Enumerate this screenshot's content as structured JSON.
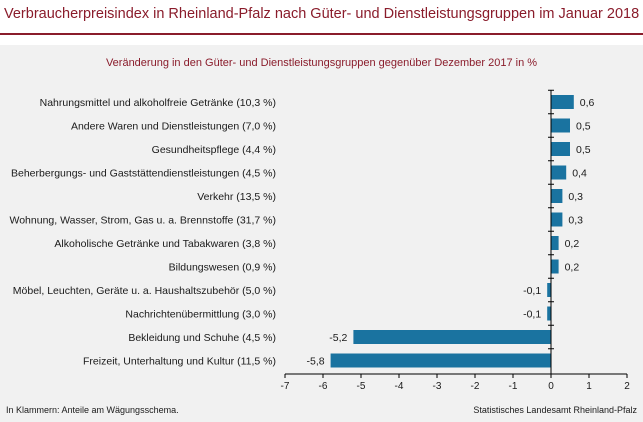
{
  "header": {
    "title": "Verbraucherpreisindex in Rheinland-Pfalz nach Güter- und Dienstleistungsgruppen im Januar 2018"
  },
  "footer": {
    "note": "In Klammern: Anteile am Wägungsschema.",
    "source": "Statistisches Landesamt Rheinland-Pfalz"
  },
  "colors": {
    "accent": "#8a1c2b",
    "bar": "#1a73a0",
    "panel": "#f1f1f1"
  },
  "chart_data": {
    "type": "bar",
    "orientation": "horizontal",
    "title": "Veränderung in den Güter- und Dienstleistungsgruppen gegenüber Dezember 2017 in %",
    "xlim": [
      -7,
      2
    ],
    "x_ticks": [
      -7,
      -6,
      -5,
      -4,
      -3,
      -2,
      -1,
      0,
      1,
      2
    ],
    "grid": false,
    "categories": [
      "Nahrungsmittel und alkoholfreie Getränke (10,3 %)",
      "Andere Waren und Dienstleistungen (7,0 %)",
      "Gesundheitspflege (4,4 %)",
      "Beherbergungs- und Gaststättendienstleistungen (4,5 %)",
      "Verkehr (13,5 %)",
      "Wohnung, Wasser, Strom, Gas u. a. Brennstoffe (31,7 %)",
      "Alkoholische Getränke und Tabakwaren (3,8 %)",
      "Bildungswesen (0,9 %)",
      "Möbel, Leuchten, Geräte u. a. Haushaltszubehör (5,0 %)",
      "Nachrichtenübermittlung (3,0 %)",
      "Bekleidung und Schuhe (4,5 %)",
      "Freizeit, Unterhaltung und Kultur (11,5 %)"
    ],
    "values": [
      0.6,
      0.5,
      0.5,
      0.4,
      0.3,
      0.3,
      0.2,
      0.2,
      -0.1,
      -0.1,
      -5.2,
      -5.8
    ],
    "value_labels": [
      "0,6",
      "0,5",
      "0,5",
      "0,4",
      "0,3",
      "0,3",
      "0,2",
      "0,2",
      "-0,1",
      "-0,1",
      "-5,2",
      "-5,8"
    ]
  }
}
